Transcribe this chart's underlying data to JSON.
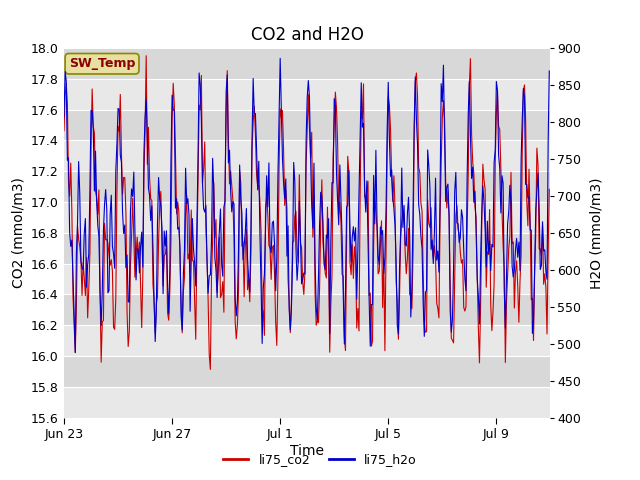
{
  "title": "CO2 and H2O",
  "xlabel": "Time",
  "ylabel_left": "CO2 (mmol/m3)",
  "ylabel_right": "H2O (mmol/m3)",
  "ylim_left": [
    15.6,
    18.0
  ],
  "ylim_right": [
    400,
    900
  ],
  "yticks_left": [
    15.6,
    15.8,
    16.0,
    16.2,
    16.4,
    16.6,
    16.8,
    17.0,
    17.2,
    17.4,
    17.6,
    17.8,
    18.0
  ],
  "yticks_right": [
    400,
    450,
    500,
    550,
    600,
    650,
    700,
    750,
    800,
    850,
    900
  ],
  "xtick_labels": [
    "Jun 23",
    "Jun 27",
    "Jul 1",
    "Jul 5",
    "Jul 9"
  ],
  "co2_color": "#CC0000",
  "h2o_color": "#0000CC",
  "background_color": "#ffffff",
  "plot_bg_light": "#f0f0f0",
  "plot_bg_dark": "#e0e0e0",
  "legend_label_co2": "li75_co2",
  "legend_label_h2o": "li75_h2o",
  "sw_temp_label": "SW_Temp",
  "sw_temp_bg": "#e8e0a0",
  "sw_temp_border": "#888800",
  "title_fontsize": 12,
  "axis_fontsize": 10,
  "tick_fontsize": 9
}
